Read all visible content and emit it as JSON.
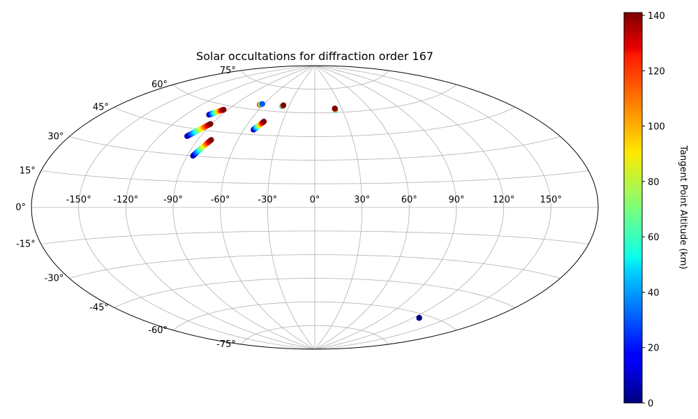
{
  "chart_data": {
    "type": "scatter",
    "projection": "aitoff",
    "title": "Solar occultations for diffraction order 167",
    "xlabel": "",
    "ylabel": "",
    "grid": true,
    "x_ticks": [
      "-150°",
      "-120°",
      "-90°",
      "-60°",
      "-30°",
      "0°",
      "30°",
      "60°",
      "90°",
      "120°",
      "150°"
    ],
    "x_tick_values": [
      -150,
      -120,
      -90,
      -60,
      -30,
      0,
      30,
      60,
      90,
      120,
      150
    ],
    "y_ticks": [
      "-75°",
      "-60°",
      "-45°",
      "-30°",
      "-15°",
      "0°",
      "15°",
      "30°",
      "45°",
      "60°",
      "75°"
    ],
    "y_tick_values": [
      -75,
      -60,
      -45,
      -30,
      -15,
      0,
      15,
      30,
      45,
      60,
      75
    ],
    "xlim": [
      -180,
      180
    ],
    "ylim": [
      -90,
      90
    ],
    "colorbar": {
      "label": "Tangent Point Altitude (km)",
      "range": [
        0,
        141
      ],
      "ticks": [
        "0",
        "20",
        "40",
        "60",
        "80",
        "100",
        "120",
        "140"
      ],
      "tick_values": [
        0,
        20,
        40,
        60,
        80,
        100,
        120,
        140
      ],
      "colormap": "jet"
    },
    "tracks": [
      {
        "lon_start": -101,
        "lat_start": 53.5,
        "lon_end": -94,
        "lat_end": 57.5,
        "alt_start": 0,
        "alt_end": 141
      },
      {
        "lon_start": -100,
        "lat_start": 40.5,
        "lon_end": -91,
        "lat_end": 48.8,
        "alt_start": 0,
        "alt_end": 141
      },
      {
        "lon_start": -86,
        "lat_start": 30,
        "lon_end": -80,
        "lat_end": 40,
        "alt_start": 0,
        "alt_end": 141
      },
      {
        "lon_start": -64,
        "lat_start": 63.2,
        "lon_end": -62,
        "lat_end": 63.8,
        "alt_start": 141,
        "alt_end": 30
      },
      {
        "lon_start": -52,
        "lat_start": 48,
        "lon_end": -47,
        "lat_end": 53.4,
        "alt_start": 0,
        "alt_end": 141
      },
      {
        "lon_start": -37.5,
        "lat_start": 63.5,
        "lon_end": -37,
        "lat_end": 64.2,
        "alt_start": 10,
        "alt_end": 141
      },
      {
        "lon_start": 22.5,
        "lat_start": 61.5,
        "lon_end": 22.5,
        "lat_end": 62.6,
        "alt_start": 30,
        "alt_end": 141
      },
      {
        "lon_start": 125.5,
        "lat_start": -62,
        "lon_end": 125.5,
        "lat_end": -62,
        "alt_start": 0,
        "alt_end": 0
      }
    ]
  }
}
